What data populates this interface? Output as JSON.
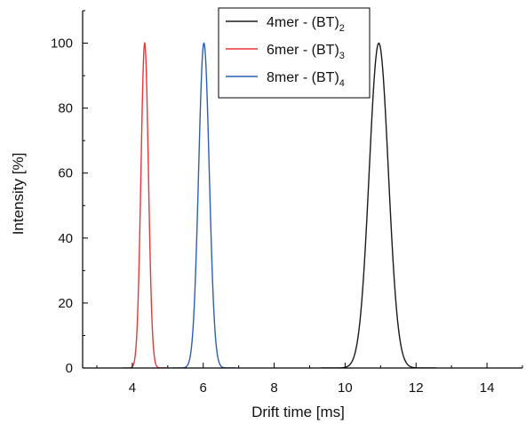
{
  "chart_data": {
    "type": "line",
    "title": "",
    "xlabel": "Drift time [ms]",
    "ylabel": "Intensity [%]",
    "xlim": [
      2.6,
      15.0
    ],
    "ylim": [
      0,
      110
    ],
    "x_ticks": [
      4,
      6,
      8,
      10,
      12,
      14
    ],
    "y_ticks": [
      0,
      20,
      40,
      60,
      80,
      100
    ],
    "grid": false,
    "legend_position": "top-right",
    "series": [
      {
        "name": "4mer - (BT)",
        "name_subscript": "2",
        "color": "#1a1a1a",
        "peak_center": 10.95,
        "peak_height": 100,
        "peak_sigma": 0.27
      },
      {
        "name": "6mer - (BT)",
        "name_subscript": "3",
        "color": "#e8363a",
        "peak_center": 4.35,
        "peak_height": 100,
        "peak_sigma": 0.105
      },
      {
        "name": "8mer - (BT)",
        "name_subscript": "4",
        "color": "#2c5fb3",
        "peak_center": 6.02,
        "peak_height": 100,
        "peak_sigma": 0.15
      }
    ]
  }
}
